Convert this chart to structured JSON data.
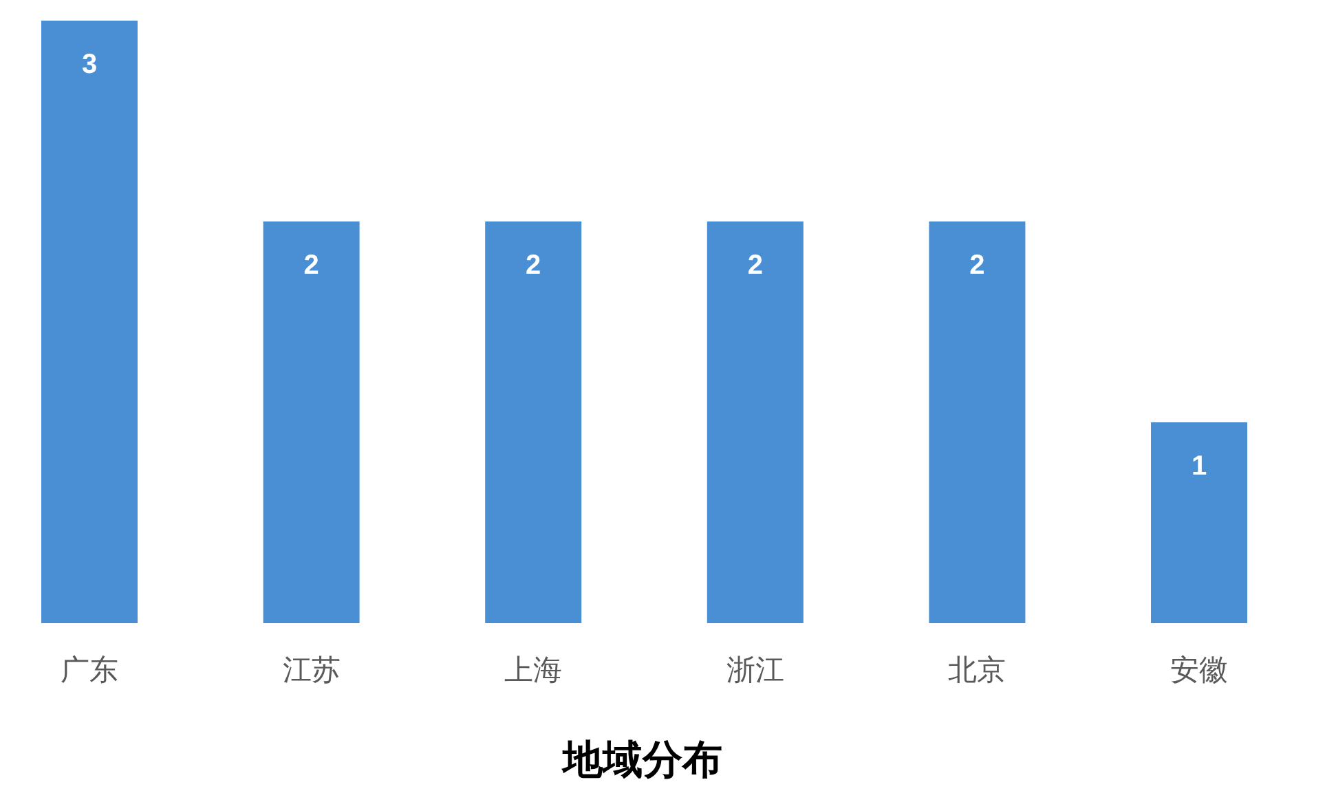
{
  "chart_data": {
    "type": "bar",
    "title": "地域分布",
    "categories": [
      "广东",
      "江苏",
      "上海",
      "浙江",
      "北京",
      "安徽"
    ],
    "values": [
      3,
      2,
      2,
      2,
      2,
      1
    ],
    "color": "#4a8fd4",
    "data_labels": true
  }
}
